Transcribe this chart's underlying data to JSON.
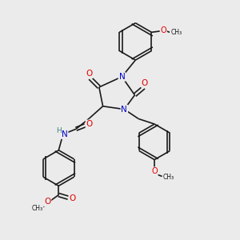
{
  "bg_color": "#ebebeb",
  "bond_color": "#1a1a1a",
  "bond_width": 1.2,
  "dbo": 0.055,
  "atom_colors": {
    "O": "#e00000",
    "N": "#0000cc",
    "H": "#408080",
    "C": "#1a1a1a"
  },
  "fs": 7.0,
  "figsize": [
    3.0,
    3.0
  ],
  "dpi": 100,
  "xlim": [
    0,
    10
  ],
  "ylim": [
    0,
    10
  ]
}
